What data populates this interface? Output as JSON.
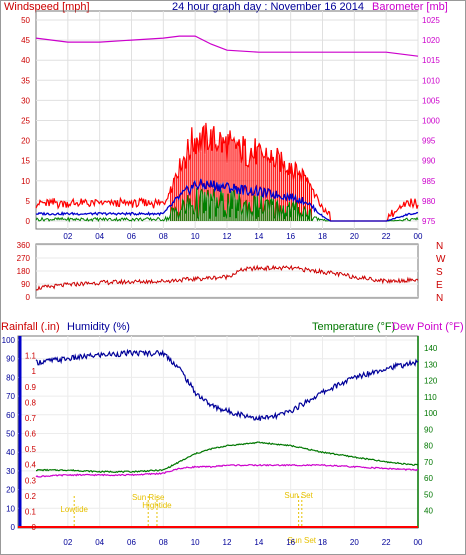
{
  "header": {
    "wind_title": "Windspeed [mph]",
    "graph_title": "24 hour graph day : November 16 2014",
    "baro_title": "Barometer [mb]"
  },
  "colors": {
    "windspeed": "#ff0000",
    "gust": "#0000cc",
    "wind_avg": "#008000",
    "barometer": "#cc00cc",
    "direction": "#cc0000",
    "rainfall": "#ff0000",
    "humidity": "#000099",
    "temperature": "#007700",
    "dew_point": "#cc00cc",
    "markers": "#e6c000"
  },
  "chart_data": [
    {
      "type": "line",
      "panel": "wind",
      "x_ticks": [
        "02",
        "04",
        "06",
        "08",
        "10",
        "12",
        "14",
        "16",
        "18",
        "20",
        "22",
        "00"
      ],
      "ylim_left": [
        0,
        50
      ],
      "yticks_left": [
        "0",
        "5",
        "10",
        "15",
        "20",
        "25",
        "30",
        "35",
        "40",
        "45",
        "50"
      ],
      "ylim_right": [
        975,
        1025
      ],
      "yticks_right": [
        "975",
        "980",
        "985",
        "990",
        "995",
        "1000",
        "1005",
        "1010",
        "1015",
        "1020",
        "1025"
      ],
      "series": [
        {
          "name": "Windspeed [mph]",
          "x": [
            0,
            2,
            4,
            6,
            8,
            9,
            10,
            11,
            12,
            13,
            14,
            15,
            16,
            17,
            18,
            18.5,
            21,
            22,
            23.5,
            24
          ],
          "values": [
            3,
            3,
            3,
            3,
            3,
            10,
            15,
            15,
            14,
            13,
            12,
            11,
            10,
            8,
            2,
            0,
            0,
            0,
            3,
            3
          ]
        },
        {
          "name": "Barometer [mb]",
          "x": [
            0,
            2,
            4,
            6,
            8,
            9,
            10,
            11,
            12,
            14,
            16,
            18,
            20,
            22,
            23,
            24
          ],
          "values": [
            1020.5,
            1019.5,
            1019.5,
            1020,
            1020.5,
            1021,
            1021,
            1019,
            1017.5,
            1017,
            1017,
            1017,
            1017,
            1017,
            1016.5,
            1016
          ]
        }
      ]
    },
    {
      "type": "line",
      "panel": "direction",
      "ylim": [
        0,
        360
      ],
      "yticks": [
        "0",
        "90",
        "180",
        "270",
        "360"
      ],
      "compass": [
        "N",
        "W",
        "S",
        "E",
        "N"
      ],
      "x": [
        0,
        2,
        4,
        6,
        8,
        10,
        12,
        13,
        14,
        16,
        18,
        20,
        22,
        24
      ],
      "values": [
        60,
        85,
        100,
        105,
        110,
        125,
        140,
        190,
        200,
        200,
        175,
        140,
        110,
        120
      ]
    },
    {
      "type": "line",
      "panel": "humidity_temp",
      "left_labels": {
        "rain": "Rainfall (.in)",
        "humidity": "Humidity (%)"
      },
      "right_labels": {
        "temperature": "Temperature (°F)",
        "dew_point": "Dew Point (°F)"
      },
      "yticks_humidity": [
        "0",
        "10",
        "20",
        "30",
        "40",
        "50",
        "60",
        "70",
        "80",
        "90",
        "100"
      ],
      "yticks_rain": [
        "0",
        "0.1",
        "0.2",
        "0.3",
        "0.4",
        "0.5",
        "0.6",
        "0.7",
        "0.8",
        "0.9",
        "1",
        "1.1"
      ],
      "yticks_temp": [
        "40",
        "50",
        "60",
        "70",
        "80",
        "90",
        "100",
        "110",
        "120",
        "130",
        "140"
      ],
      "ylim_temp": [
        30,
        145
      ],
      "series": [
        {
          "name": "Humidity",
          "x": [
            0,
            2,
            4,
            6,
            8,
            9,
            10,
            11,
            12,
            13,
            14,
            15,
            16,
            18,
            20,
            22,
            24
          ],
          "values": [
            88,
            90,
            92,
            93,
            93,
            85,
            72,
            65,
            62,
            60,
            58,
            59,
            62,
            72,
            80,
            85,
            88
          ]
        },
        {
          "name": "Temperature",
          "x": [
            0,
            2,
            4,
            6,
            8,
            9,
            10,
            11,
            12,
            13,
            14,
            15,
            16,
            18,
            20,
            22,
            24
          ],
          "values": [
            65,
            65,
            64,
            64,
            65,
            70,
            75,
            78,
            80,
            81,
            82,
            81,
            80,
            76,
            73,
            70,
            68
          ]
        },
        {
          "name": "Dew Point",
          "x": [
            0,
            2,
            4,
            6,
            8,
            9,
            10,
            11,
            12,
            14,
            16,
            18,
            20,
            22,
            24
          ],
          "values": [
            61,
            62,
            62,
            62,
            63,
            66,
            67,
            67,
            68,
            68,
            68,
            68,
            67,
            66,
            65
          ]
        }
      ],
      "markers": [
        {
          "label": "Lowtide",
          "x": 2.4
        },
        {
          "label": "Sun Rise",
          "x": 7.05
        },
        {
          "label": "Hightide",
          "x": 7.6
        },
        {
          "label": "Sun Set",
          "x": 16.5
        },
        {
          "label": "Sun Set",
          "x": 16.7
        }
      ]
    }
  ]
}
